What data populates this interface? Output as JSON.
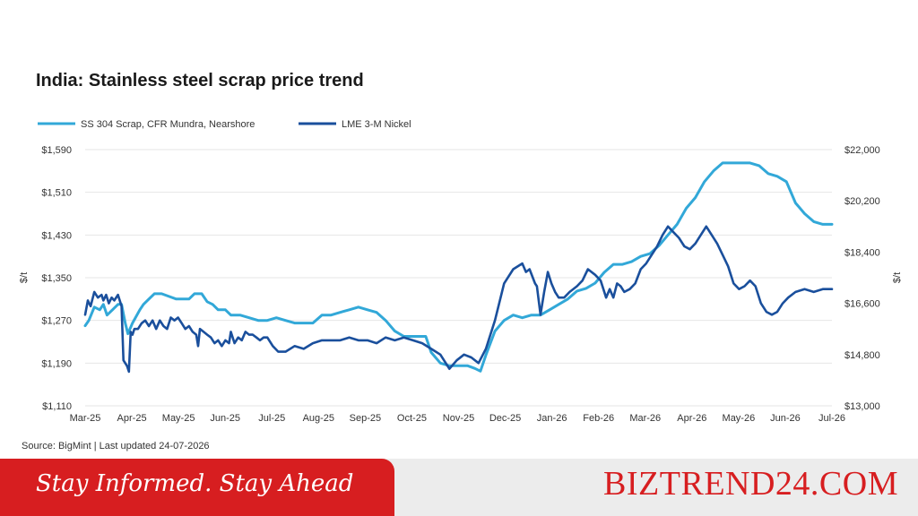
{
  "chart_data": {
    "type": "line",
    "title": "India: Stainless steel scrap price trend",
    "source": "Source: BigMint | Last updated 24-07-2026",
    "y_left": {
      "label": "$/t",
      "ticks": [
        "$1,590",
        "$1,510",
        "$1,430",
        "$1,350",
        "$1,270",
        "$1,190",
        "$1,110"
      ],
      "range": [
        1110,
        1590
      ]
    },
    "y_right": {
      "label": "$/t",
      "ticks": [
        "$22,000",
        "$20,200",
        "$18,400",
        "$16,600",
        "$14,800",
        "$13,000"
      ],
      "range": [
        13000,
        22000
      ]
    },
    "x_ticks": [
      "Mar-25",
      "Apr-25",
      "May-25",
      "Jun-25",
      "Jul-25",
      "Aug-25",
      "Sep-25",
      "Oct-25",
      "Nov-25",
      "Dec-25",
      "Jan-26",
      "Feb-26",
      "Mar-26",
      "Apr-26",
      "May-26",
      "Jun-26",
      "Jul-26"
    ],
    "grid": true,
    "legend_position": "top-left",
    "series": [
      {
        "name": "SS 304 Scrap, CFR Mundra, Nearshore",
        "axis": "left",
        "color": "#32a8d8",
        "points": [
          [
            0.0,
            1260
          ],
          [
            0.2,
            1270
          ],
          [
            0.5,
            1295
          ],
          [
            0.8,
            1290
          ],
          [
            1.0,
            1300
          ],
          [
            1.2,
            1280
          ],
          [
            1.5,
            1290
          ],
          [
            1.8,
            1300
          ],
          [
            2.0,
            1300
          ],
          [
            2.2,
            1265
          ],
          [
            2.35,
            1245
          ],
          [
            2.6,
            1265
          ],
          [
            3.0,
            1290
          ],
          [
            3.2,
            1300
          ],
          [
            3.5,
            1310
          ],
          [
            3.8,
            1320
          ],
          [
            4.2,
            1320
          ],
          [
            4.6,
            1315
          ],
          [
            5.0,
            1310
          ],
          [
            5.3,
            1310
          ],
          [
            5.7,
            1310
          ],
          [
            6.0,
            1320
          ],
          [
            6.4,
            1320
          ],
          [
            6.7,
            1305
          ],
          [
            7.0,
            1300
          ],
          [
            7.3,
            1290
          ],
          [
            7.7,
            1290
          ],
          [
            8.0,
            1280
          ],
          [
            8.5,
            1280
          ],
          [
            9.0,
            1275
          ],
          [
            9.5,
            1270
          ],
          [
            10.0,
            1270
          ],
          [
            10.5,
            1275
          ],
          [
            11.0,
            1270
          ],
          [
            11.5,
            1265
          ],
          [
            12.0,
            1265
          ],
          [
            12.5,
            1265
          ],
          [
            13.0,
            1280
          ],
          [
            13.5,
            1280
          ],
          [
            14.0,
            1285
          ],
          [
            14.5,
            1290
          ],
          [
            15.0,
            1295
          ],
          [
            15.5,
            1290
          ],
          [
            16.0,
            1285
          ],
          [
            16.5,
            1270
          ],
          [
            17.0,
            1250
          ],
          [
            17.5,
            1240
          ],
          [
            18.0,
            1240
          ],
          [
            18.7,
            1240
          ],
          [
            19.0,
            1210
          ],
          [
            19.5,
            1190
          ],
          [
            20.0,
            1185
          ],
          [
            21.0,
            1185
          ],
          [
            21.4,
            1180
          ],
          [
            21.7,
            1175
          ],
          [
            22.0,
            1205
          ],
          [
            22.5,
            1250
          ],
          [
            23.0,
            1270
          ],
          [
            23.5,
            1280
          ],
          [
            24.0,
            1275
          ],
          [
            24.5,
            1280
          ],
          [
            25.0,
            1280
          ],
          [
            25.5,
            1290
          ],
          [
            26.0,
            1300
          ],
          [
            26.5,
            1310
          ],
          [
            27.0,
            1325
          ],
          [
            27.5,
            1330
          ],
          [
            28.0,
            1340
          ],
          [
            28.5,
            1360
          ],
          [
            29.0,
            1375
          ],
          [
            29.5,
            1375
          ],
          [
            30.0,
            1380
          ],
          [
            30.5,
            1390
          ],
          [
            31.0,
            1395
          ],
          [
            31.5,
            1410
          ],
          [
            32.0,
            1430
          ],
          [
            32.5,
            1450
          ],
          [
            33.0,
            1480
          ],
          [
            33.5,
            1500
          ],
          [
            34.0,
            1530
          ],
          [
            34.5,
            1550
          ],
          [
            35.0,
            1565
          ],
          [
            35.5,
            1565
          ],
          [
            36.0,
            1565
          ],
          [
            36.5,
            1565
          ],
          [
            37.0,
            1560
          ],
          [
            37.5,
            1545
          ],
          [
            38.0,
            1540
          ],
          [
            38.5,
            1530
          ],
          [
            39.0,
            1490
          ],
          [
            39.5,
            1470
          ],
          [
            40.0,
            1455
          ],
          [
            40.5,
            1450
          ],
          [
            41.0,
            1450
          ]
        ]
      },
      {
        "name": "LME 3-M Nickel",
        "axis": "right",
        "color": "#1a4f9c",
        "points": [
          [
            0.0,
            16200
          ],
          [
            0.15,
            16700
          ],
          [
            0.3,
            16500
          ],
          [
            0.5,
            17000
          ],
          [
            0.7,
            16800
          ],
          [
            0.9,
            16900
          ],
          [
            1.0,
            16700
          ],
          [
            1.15,
            16900
          ],
          [
            1.3,
            16600
          ],
          [
            1.45,
            16800
          ],
          [
            1.6,
            16700
          ],
          [
            1.8,
            16900
          ],
          [
            2.0,
            16500
          ],
          [
            2.1,
            14600
          ],
          [
            2.3,
            14400
          ],
          [
            2.4,
            14200
          ],
          [
            2.5,
            15600
          ],
          [
            2.6,
            15500
          ],
          [
            2.7,
            15700
          ],
          [
            2.9,
            15700
          ],
          [
            3.1,
            15900
          ],
          [
            3.3,
            16000
          ],
          [
            3.5,
            15800
          ],
          [
            3.7,
            16000
          ],
          [
            3.9,
            15700
          ],
          [
            4.1,
            16000
          ],
          [
            4.3,
            15800
          ],
          [
            4.5,
            15700
          ],
          [
            4.7,
            16100
          ],
          [
            4.9,
            16000
          ],
          [
            5.1,
            16100
          ],
          [
            5.3,
            15900
          ],
          [
            5.5,
            15700
          ],
          [
            5.7,
            15800
          ],
          [
            5.9,
            15600
          ],
          [
            6.1,
            15500
          ],
          [
            6.2,
            15100
          ],
          [
            6.3,
            15700
          ],
          [
            6.5,
            15600
          ],
          [
            6.7,
            15500
          ],
          [
            6.9,
            15400
          ],
          [
            7.1,
            15200
          ],
          [
            7.3,
            15300
          ],
          [
            7.5,
            15100
          ],
          [
            7.7,
            15300
          ],
          [
            7.9,
            15200
          ],
          [
            8.0,
            15600
          ],
          [
            8.2,
            15200
          ],
          [
            8.4,
            15400
          ],
          [
            8.6,
            15300
          ],
          [
            8.8,
            15600
          ],
          [
            9.0,
            15500
          ],
          [
            9.2,
            15500
          ],
          [
            9.4,
            15400
          ],
          [
            9.6,
            15300
          ],
          [
            9.8,
            15400
          ],
          [
            10.0,
            15400
          ],
          [
            10.3,
            15100
          ],
          [
            10.6,
            14900
          ],
          [
            11.0,
            14900
          ],
          [
            11.5,
            15100
          ],
          [
            12.0,
            15000
          ],
          [
            12.5,
            15200
          ],
          [
            13.0,
            15300
          ],
          [
            13.5,
            15300
          ],
          [
            14.0,
            15300
          ],
          [
            14.5,
            15400
          ],
          [
            15.0,
            15300
          ],
          [
            15.5,
            15300
          ],
          [
            16.0,
            15200
          ],
          [
            16.5,
            15400
          ],
          [
            17.0,
            15300
          ],
          [
            17.5,
            15400
          ],
          [
            18.0,
            15300
          ],
          [
            18.5,
            15200
          ],
          [
            19.0,
            15000
          ],
          [
            19.5,
            14800
          ],
          [
            20.0,
            14300
          ],
          [
            20.4,
            14600
          ],
          [
            20.8,
            14800
          ],
          [
            21.2,
            14700
          ],
          [
            21.6,
            14500
          ],
          [
            22.0,
            15000
          ],
          [
            22.5,
            16000
          ],
          [
            23.0,
            17300
          ],
          [
            23.5,
            17800
          ],
          [
            24.0,
            18000
          ],
          [
            24.2,
            17700
          ],
          [
            24.4,
            17800
          ],
          [
            24.7,
            17300
          ],
          [
            24.8,
            17200
          ],
          [
            25.0,
            16200
          ],
          [
            25.2,
            17000
          ],
          [
            25.4,
            17700
          ],
          [
            25.6,
            17300
          ],
          [
            25.8,
            17000
          ],
          [
            26.0,
            16800
          ],
          [
            26.3,
            16800
          ],
          [
            26.6,
            17000
          ],
          [
            27.0,
            17200
          ],
          [
            27.3,
            17400
          ],
          [
            27.6,
            17800
          ],
          [
            28.0,
            17600
          ],
          [
            28.3,
            17400
          ],
          [
            28.6,
            16800
          ],
          [
            28.8,
            17100
          ],
          [
            29.0,
            16800
          ],
          [
            29.2,
            17300
          ],
          [
            29.4,
            17200
          ],
          [
            29.6,
            17000
          ],
          [
            29.9,
            17100
          ],
          [
            30.2,
            17300
          ],
          [
            30.5,
            17800
          ],
          [
            30.8,
            18000
          ],
          [
            31.1,
            18300
          ],
          [
            31.4,
            18600
          ],
          [
            31.7,
            19000
          ],
          [
            32.0,
            19300
          ],
          [
            32.3,
            19100
          ],
          [
            32.6,
            18900
          ],
          [
            32.9,
            18600
          ],
          [
            33.2,
            18500
          ],
          [
            33.5,
            18700
          ],
          [
            33.8,
            19000
          ],
          [
            34.1,
            19300
          ],
          [
            34.4,
            19000
          ],
          [
            34.7,
            18700
          ],
          [
            35.0,
            18300
          ],
          [
            35.3,
            17900
          ],
          [
            35.6,
            17300
          ],
          [
            35.9,
            17100
          ],
          [
            36.2,
            17200
          ],
          [
            36.5,
            17400
          ],
          [
            36.8,
            17200
          ],
          [
            37.1,
            16600
          ],
          [
            37.4,
            16300
          ],
          [
            37.7,
            16200
          ],
          [
            38.0,
            16300
          ],
          [
            38.3,
            16600
          ],
          [
            38.6,
            16800
          ],
          [
            39.0,
            17000
          ],
          [
            39.5,
            17100
          ],
          [
            40.0,
            17000
          ],
          [
            40.5,
            17100
          ],
          [
            41.0,
            17100
          ]
        ]
      }
    ]
  },
  "footer": {
    "tagline": "Stay Informed. Stay Ahead",
    "brand": "BIZTREND24.COM"
  }
}
